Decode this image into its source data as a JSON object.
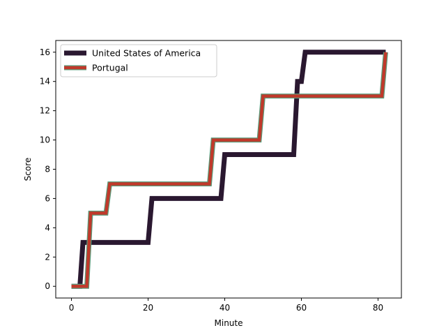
{
  "chart_data": {
    "type": "line",
    "step": true,
    "title": "",
    "xlabel": "Minute",
    "ylabel": "Score",
    "xlim": [
      -4.1,
      86.1
    ],
    "ylim": [
      -0.8,
      16.8
    ],
    "xticks": [
      0,
      20,
      40,
      60,
      80
    ],
    "yticks": [
      0,
      2,
      4,
      6,
      8,
      10,
      12,
      14,
      16
    ],
    "grid": false,
    "legend_position": "upper-left",
    "series": [
      {
        "name": "United States of America",
        "color": "#2a1830",
        "edge_color": "#2a1830",
        "points": [
          [
            0,
            0
          ],
          [
            2,
            0
          ],
          [
            2.2,
            0
          ],
          [
            3,
            3
          ],
          [
            20,
            3
          ],
          [
            21,
            6
          ],
          [
            39,
            6
          ],
          [
            40,
            9
          ],
          [
            58,
            9
          ],
          [
            59,
            14
          ],
          [
            60,
            14
          ],
          [
            61,
            16
          ],
          [
            82,
            16
          ]
        ]
      },
      {
        "name": "Portugal",
        "color": "#c0392b",
        "edge_color": "#5a9a7a",
        "points": [
          [
            0,
            0
          ],
          [
            4,
            0
          ],
          [
            5,
            5
          ],
          [
            9,
            5
          ],
          [
            10,
            7
          ],
          [
            36,
            7
          ],
          [
            37,
            10
          ],
          [
            49,
            10
          ],
          [
            50,
            13
          ],
          [
            81,
            13
          ],
          [
            82,
            16
          ]
        ]
      }
    ]
  }
}
